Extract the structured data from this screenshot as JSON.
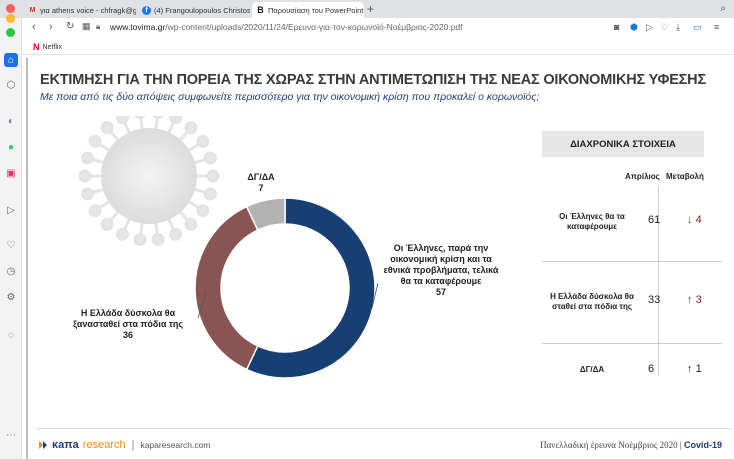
{
  "browser": {
    "tabs": [
      {
        "icon": "gmail-icon",
        "label": "για athens voice - chfragk@gm"
      },
      {
        "icon": "facebook-icon",
        "label": "(4) Frangoulopoulos Christos"
      },
      {
        "icon": "blog-icon",
        "label": "Παρουσίαση του PowerPoint"
      }
    ],
    "new_tab": "+",
    "url_domain": "www.tovima.gr",
    "url_path": "/wp-content/uploads/2020/11/24/Ερευνα-για-τον-κορωνοϊό-Νοέμβριος-2020.pdf",
    "bookmark": "Netflix"
  },
  "slide": {
    "title": "ΕΚΤΙΜΗΣΗ ΓΙΑ ΤΗΝ ΠΟΡΕΙΑ ΤΗΣ ΧΩΡΑΣ ΣΤΗΝ ΑΝΤΙΜΕΤΩΠΙΣΗ ΤΗΣ ΝΕΑΣ ΟΙΚΟΝΟΜΙΚΗΣ ΥΦΕΣΗΣ",
    "subtitle": "Με ποια από τις δύο απόψεις συμφωνείτε περισσότερο για την οικονομική κρίση που προκαλεί ο κορωνοϊός;",
    "donut": {
      "segments": [
        {
          "label": "Οι Έλληνες, παρά την οικονομική κρίση και τα εθνικά προβλήματα, τελικά θα τα καταφέρουμε",
          "value": 57,
          "color": "#173f73"
        },
        {
          "label": "Η Ελλάδα δύσκολα θα ξανασταθεί στα πόδια της",
          "value": 36,
          "color": "#8a5454"
        },
        {
          "label": "ΔΓ/ΔΑ",
          "value": 7,
          "color": "#b2b2b2"
        }
      ],
      "label_lines": {
        "a": [
          "Οι Έλληνες, παρά την",
          "οικονομική κρίση και τα",
          "εθνικά προβλήματα, τελικά",
          "θα τα καταφέρουμε"
        ],
        "b": [
          "Η Ελλάδα δύσκολα θα",
          "ξανασταθεί στα πόδια της"
        ],
        "c": [
          "ΔΓ/ΔΑ"
        ]
      }
    },
    "panel": {
      "title": "ΔΙΑΧΡΟΝΙΚΑ ΣΤΟΙΧΕΙΑ",
      "col_april": "Απρίλιος",
      "col_change": "Μεταβολή",
      "rows": [
        {
          "label1": "Οι Έλληνες θα τα",
          "label2": "καταφέρουμε",
          "april": "61",
          "arrow": "↓",
          "change": "4"
        },
        {
          "label1": "Η Ελλάδα δύσκολα θα",
          "label2": "σταθεί στα πόδια της",
          "april": "33",
          "arrow": "↑",
          "change": "3"
        },
        {
          "label1": "ΔΓ/ΔΑ",
          "label2": "",
          "april": "6",
          "arrow": "↑",
          "change": "1"
        }
      ]
    },
    "footer": {
      "logo_kapa": "κaπa",
      "logo_research": "research",
      "site": "kaparesearch.com",
      "survey": "Πανελλαδική έρευνα Νοέμβριος 2020 |",
      "tag": "Covid-19"
    }
  },
  "chart_data": {
    "type": "pie",
    "title": "ΕΚΤΙΜΗΣΗ ΓΙΑ ΤΗΝ ΠΟΡΕΙΑ ΤΗΣ ΧΩΡΑΣ ΣΤΗΝ ΑΝΤΙΜΕΤΩΠΙΣΗ ΤΗΣ ΝΕΑΣ ΟΙΚΟΝΟΜΙΚΗΣ ΥΦΕΣΗΣ",
    "categories": [
      "Οι Έλληνες, παρά την οικονομική κρίση και τα εθνικά προβλήματα, τελικά θα τα καταφέρουμε",
      "Η Ελλάδα δύσκολα θα ξανασταθεί στα πόδια της",
      "ΔΓ/ΔΑ"
    ],
    "values": [
      57,
      36,
      7
    ],
    "legend": "none"
  }
}
